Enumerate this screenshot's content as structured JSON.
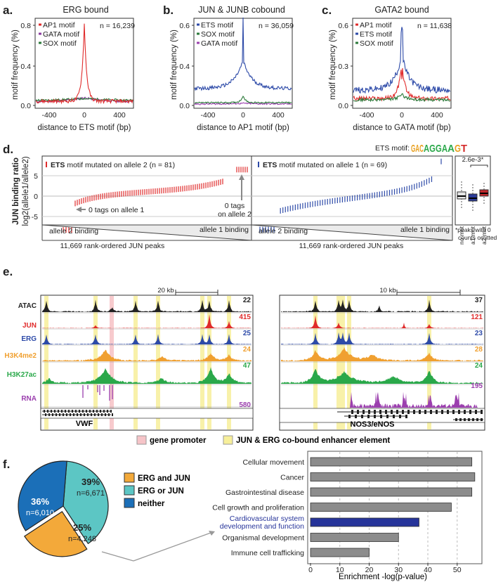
{
  "figure": {
    "a": {
      "label": "a.",
      "title": "ERG bound",
      "n": "n = 16,239",
      "xlabel": "distance to ETS motif (bp)",
      "ylabel": "motif frequency (%)",
      "yticks": [
        "0.8",
        "0.4",
        "0.0"
      ],
      "legend": [
        {
          "name": "AP1 motif",
          "color": "#e02b2b"
        },
        {
          "name": "GATA motif",
          "color": "#8a3a9e"
        },
        {
          "name": "SOX motif",
          "color": "#2b7a3a"
        }
      ]
    },
    "b": {
      "label": "b.",
      "title": "JUN & JUNB cobound",
      "n": "n = 36,059",
      "xlabel": "distance to AP1 motif (bp)",
      "ylabel": "motif frequency (%)",
      "yticks": [
        "0.6",
        "0.4",
        "0.0"
      ],
      "legend": [
        {
          "name": "ETS motif",
          "color": "#2d4aa8"
        },
        {
          "name": "SOX motif",
          "color": "#2b7a3a"
        },
        {
          "name": "GATA motif",
          "color": "#9b3fae"
        }
      ]
    },
    "c": {
      "label": "c.",
      "title": "GATA2 bound",
      "n": "n = 11,638",
      "xlabel": "distance to GATA motif (bp)",
      "ylabel": "motif frequency (%)",
      "yticks": [
        "0.6",
        "0.3",
        "0.0"
      ],
      "legend": [
        {
          "name": "AP1 motif",
          "color": "#e02b2b"
        },
        {
          "name": "ETS motif",
          "color": "#2d4aa8"
        },
        {
          "name": "SOX motif",
          "color": "#2b7a3a"
        }
      ]
    },
    "xticks": [
      "-400",
      "0",
      "400"
    ],
    "d": {
      "label": "d.",
      "ets_motif_label": "ETS motif:",
      "logo": "GACAGGAAGT",
      "ylabel1": "JUN binding ratio",
      "ylabel2": "log2(allele1/allele2)",
      "yticks": [
        "5",
        "0",
        "-5"
      ],
      "left_title_bold": "ETS",
      "left_title_rest": " motif mutated on allele 2 (n = 81)",
      "right_title_bold": "ETS",
      "right_title_rest": " motif mutated on allele 1 (n = 69)",
      "ann_left": "0 tags on allele 1",
      "ann_right1": "0 tags",
      "ann_right2": "on allele 2",
      "allele2_binding": "allele 2 binding",
      "allele1_binding": "allele 1 binding",
      "rank_label": "11,669 rank-ordered JUN peaks",
      "pval": "2.6e-3*",
      "box_labels": [
        "no mut",
        "a1 mut",
        "a2 mut"
      ],
      "footnote1": "*peaks with 0",
      "footnote2": "counts omitted"
    },
    "e": {
      "label": "e.",
      "scale_left": "20 kb",
      "scale_right": "10 kb",
      "tracks": [
        {
          "name": "ATAC",
          "color": "#222222",
          "max_left": "22",
          "max_right": "37"
        },
        {
          "name": "JUN",
          "color": "#e02b2b",
          "max_left": "415",
          "max_right": "121"
        },
        {
          "name": "ERG",
          "color": "#2d4aa8",
          "max_left": "25",
          "max_right": "23"
        },
        {
          "name": "H3K4me2",
          "color": "#f0a030",
          "max_left": "24",
          "max_right": "28"
        },
        {
          "name": "H3K27ac",
          "color": "#2aa84a",
          "max_left": "47",
          "max_right": "24"
        },
        {
          "name": "RNA",
          "color": "#9b3fae",
          "max_left": "580",
          "max_right": "195"
        }
      ],
      "gene_left": "VWF",
      "gene_right": "NOS3/eNOS",
      "legend_promoter": "gene promoter",
      "legend_enhancer": "JUN & ERG co-bound enhancer element",
      "promoter_color": "#f6c4c8",
      "enhancer_color": "#f7ef9a"
    },
    "f": {
      "label": "f.",
      "pie": [
        {
          "name": "ERG and JUN",
          "pct": "25%",
          "n": "n=4,248",
          "value": 4248,
          "color": "#f3a93a"
        },
        {
          "name": "ERG or JUN",
          "pct": "39%",
          "n": "n=6,671",
          "value": 6671,
          "color": "#5cc6c4"
        },
        {
          "name": "neither",
          "pct": "36%",
          "n": "n=6,010",
          "value": 6010,
          "color": "#1b6fb8"
        }
      ]
    }
  },
  "chart_data": {
    "type": "bar",
    "orientation": "horizontal",
    "categories": [
      "Cellular movement",
      "Cancer",
      "Gastrointestinal disease",
      "Cell growth and proliferation",
      "Cardiovascular system development and function",
      "Organismal development",
      "Immune cell trafficking"
    ],
    "category_lines": [
      [
        "Cellular movement"
      ],
      [
        "Cancer"
      ],
      [
        "Gastrointestinal disease"
      ],
      [
        "Cell growth and proliferation"
      ],
      [
        "Cardiovascular system",
        "development and function"
      ],
      [
        "Organismal development"
      ],
      [
        "Immune cell trafficking"
      ]
    ],
    "values": [
      55,
      56,
      55,
      48,
      37,
      30,
      20
    ],
    "highlight_index": 4,
    "bar_color": "#8c8c8c",
    "highlight_color": "#26349a",
    "xlabel": "Enrichment -log(p-value)",
    "xticks": [
      "0",
      "10",
      "20",
      "30",
      "40",
      "50"
    ],
    "xlim": [
      0,
      57
    ]
  }
}
